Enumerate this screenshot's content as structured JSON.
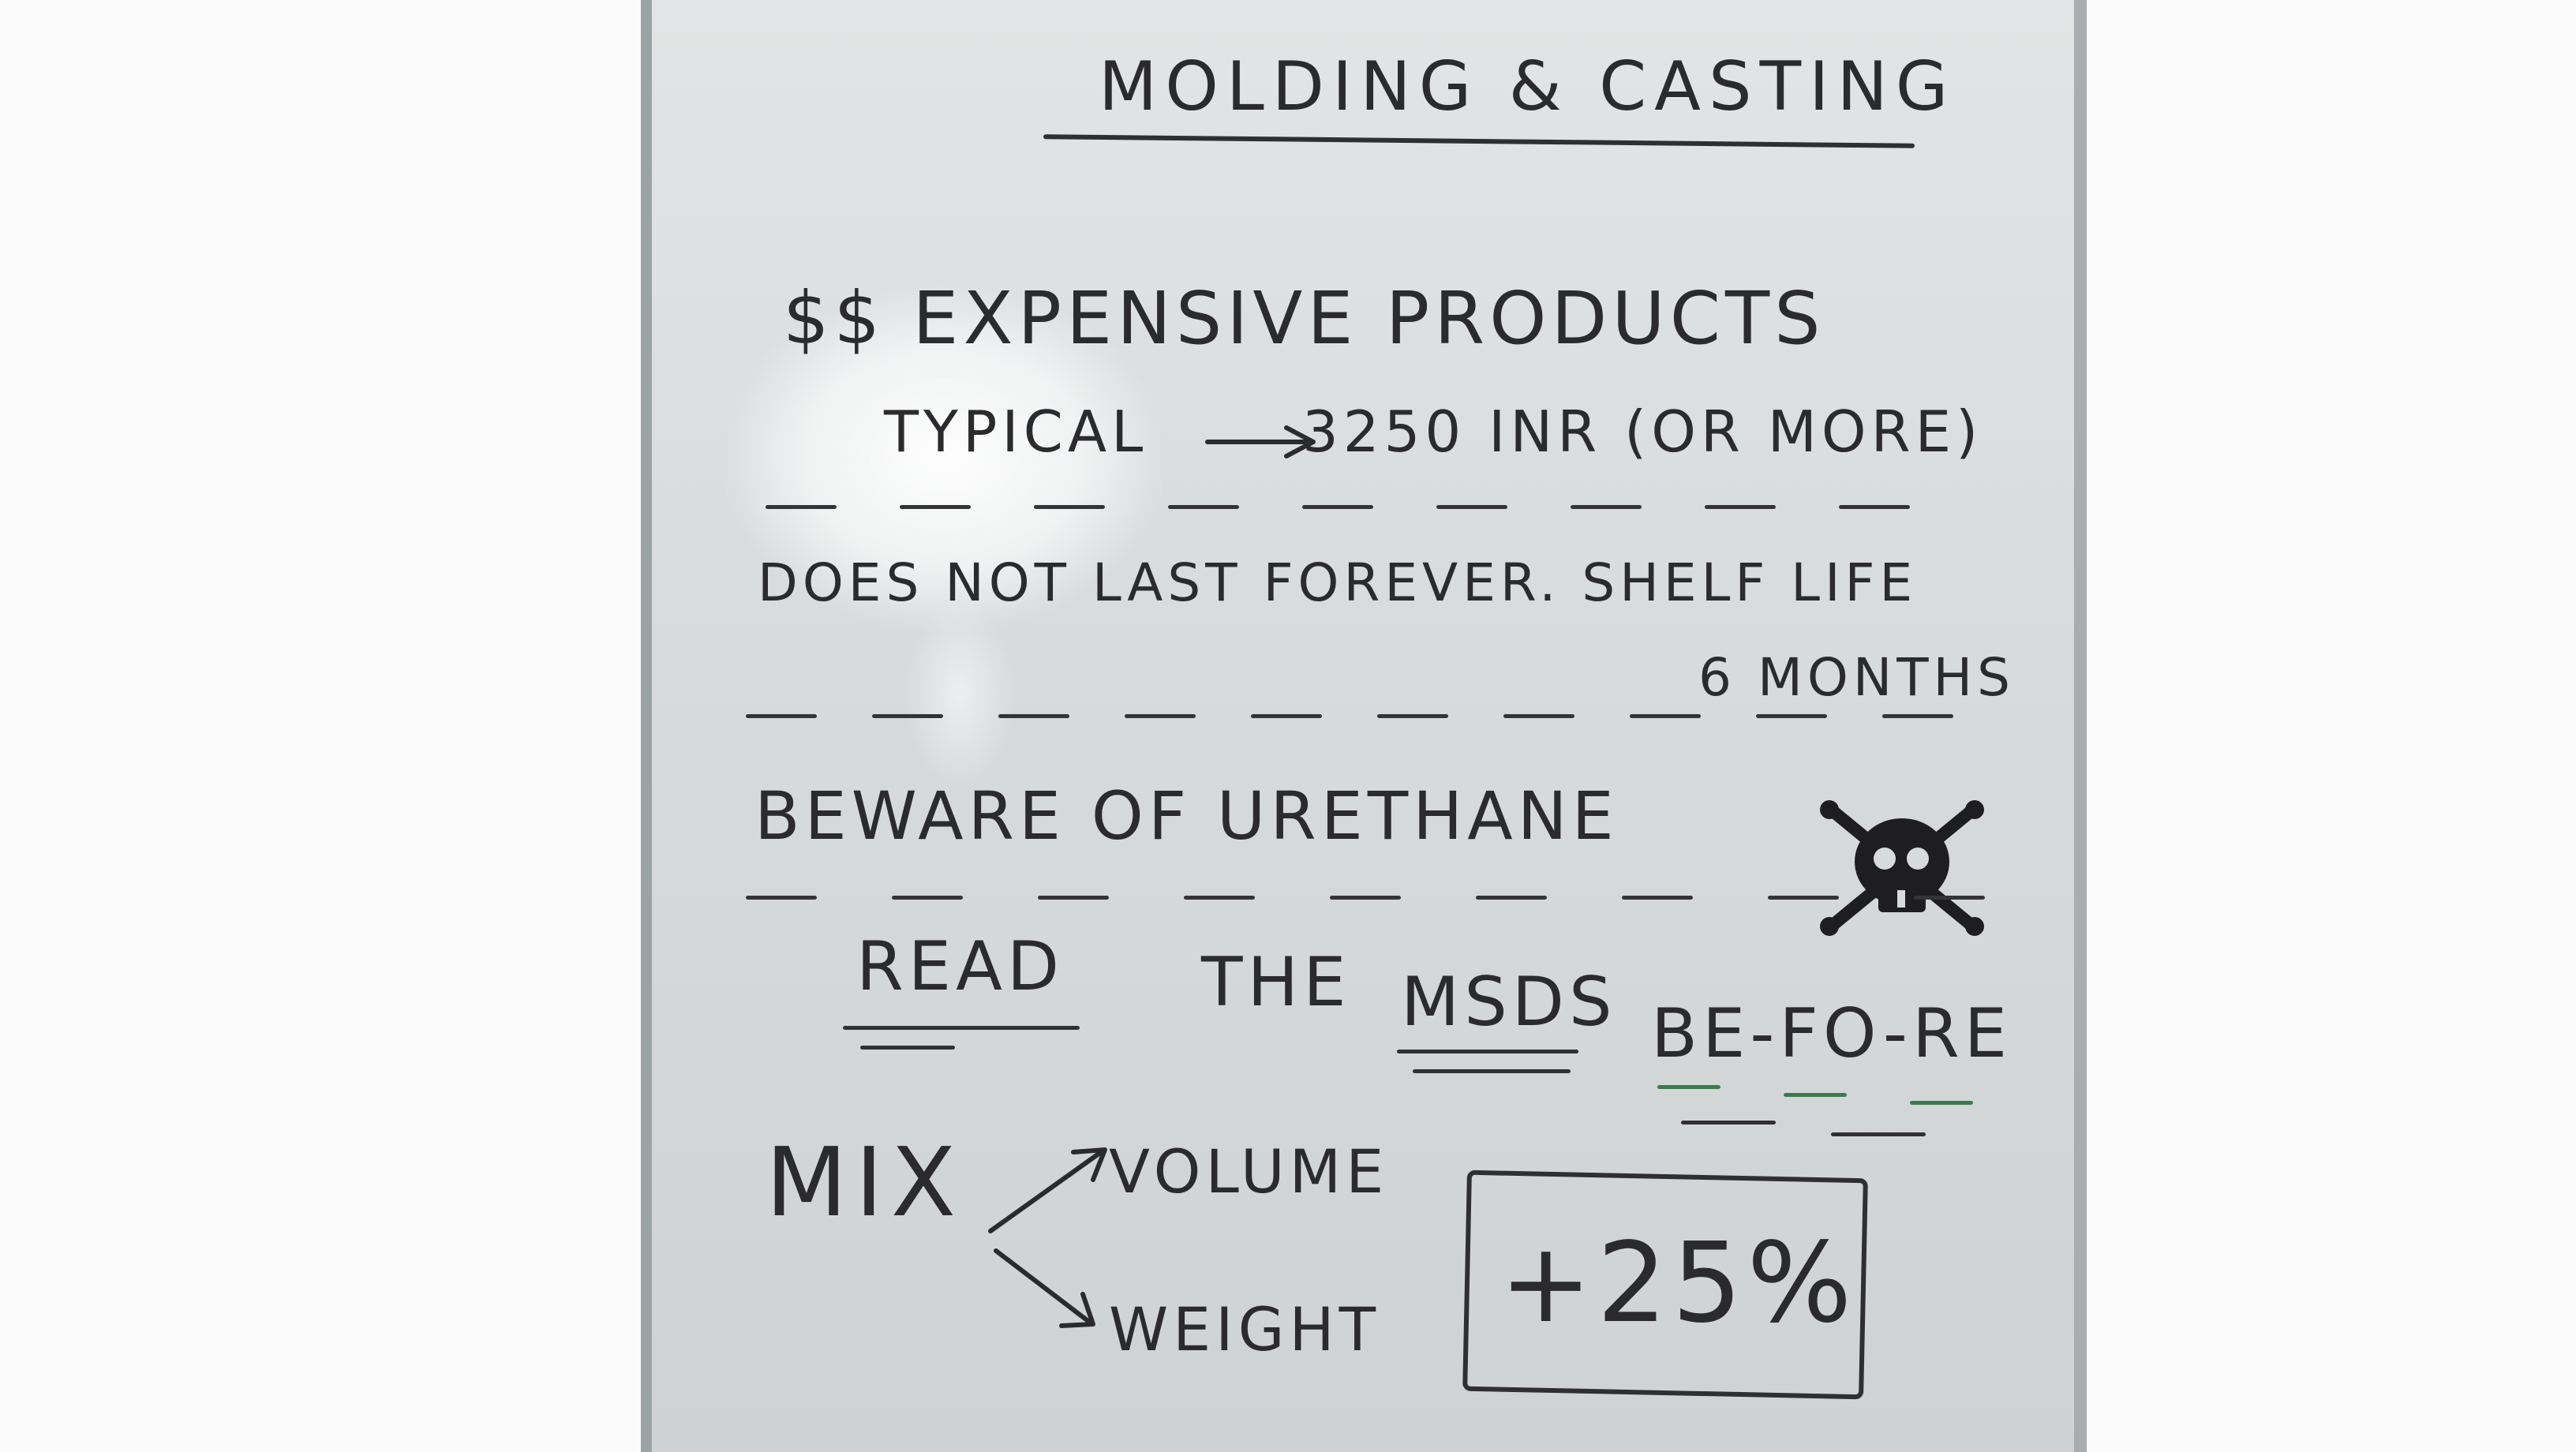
{
  "whiteboard": {
    "title": "MOLDING & CASTING",
    "expensive_line": "$$ EXPENSIVE PRODUCTS",
    "typical_label": "TYPICAL",
    "typical_value": "3250 INR (OR MORE)",
    "shelf_line": "DOES NOT LAST FOREVER. SHELF LIFE",
    "shelf_value": "6 MONTHS",
    "beware_line": "BEWARE OF URETHANE",
    "read": "READ",
    "the": "THE",
    "msds": "MSDS",
    "before": "BE-FO-RE",
    "mix": "MIX",
    "volume": "VOLUME",
    "weight": "WEIGHT",
    "percent": "+25%",
    "icons": [
      "skull-crossbones-icon",
      "arrow-right-icon"
    ],
    "ink_color": "#2b2b2d",
    "accent_color": "#3b7a4f"
  }
}
